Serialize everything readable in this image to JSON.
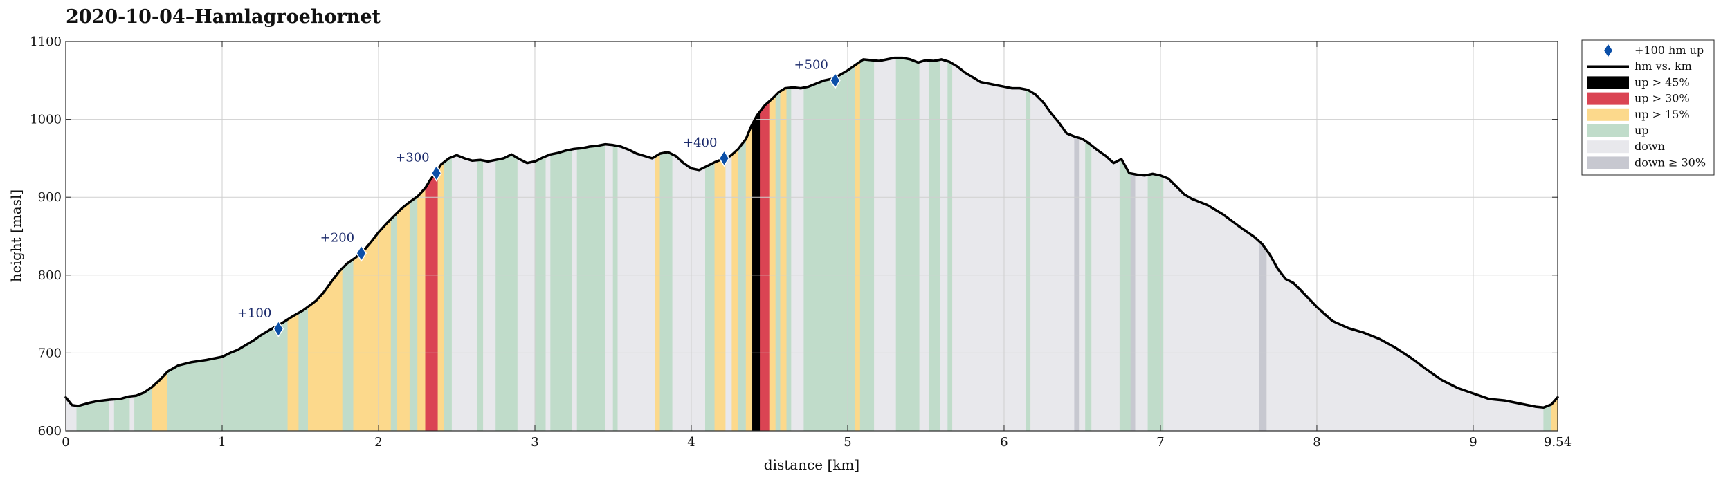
{
  "chart_data": {
    "type": "area",
    "title": "2020-10-04–Hamlagroehornet",
    "xlabel": "distance [km]",
    "ylabel": "height [masl]",
    "xlim": [
      0,
      9.54
    ],
    "ylim": [
      600,
      1100
    ],
    "xticks": [
      0,
      1,
      2,
      3,
      4,
      5,
      6,
      7,
      8,
      9,
      9.54
    ],
    "xtick_labels": [
      "0",
      "1",
      "2",
      "3",
      "4",
      "5",
      "6",
      "7",
      "8",
      "9",
      "9.54"
    ],
    "yticks": [
      600,
      700,
      800,
      900,
      1000,
      1100
    ],
    "grid": true,
    "legend_position": "outside-right",
    "legend": [
      {
        "key": "milestone",
        "label": "+100 hm up",
        "color": "#0b4fa8"
      },
      {
        "key": "profile",
        "label": "hm vs. km",
        "color": "#000000"
      },
      {
        "key": "up45",
        "label": "up > 45%",
        "color": "#000000"
      },
      {
        "key": "up30",
        "label": "up > 30%",
        "color": "#da4453"
      },
      {
        "key": "up15",
        "label": "up > 15%",
        "color": "#fcd98c"
      },
      {
        "key": "up",
        "label": "up",
        "color": "#c0dcca"
      },
      {
        "key": "down",
        "label": "down",
        "color": "#e8e8ec"
      },
      {
        "key": "down30",
        "label": "down ≥ 30%",
        "color": "#c7c8d0"
      }
    ],
    "profile": {
      "x": [
        0,
        0.04,
        0.08,
        0.15,
        0.2,
        0.28,
        0.35,
        0.4,
        0.45,
        0.5,
        0.55,
        0.6,
        0.65,
        0.72,
        0.8,
        0.9,
        1.0,
        1.05,
        1.1,
        1.15,
        1.2,
        1.25,
        1.3,
        1.38,
        1.45,
        1.52,
        1.6,
        1.65,
        1.7,
        1.75,
        1.8,
        1.85,
        1.9,
        1.95,
        2.0,
        2.05,
        2.1,
        2.15,
        2.2,
        2.25,
        2.3,
        2.33,
        2.37,
        2.4,
        2.45,
        2.5,
        2.55,
        2.6,
        2.65,
        2.7,
        2.75,
        2.8,
        2.85,
        2.9,
        2.95,
        3.0,
        3.05,
        3.1,
        3.15,
        3.2,
        3.25,
        3.3,
        3.35,
        3.4,
        3.45,
        3.5,
        3.55,
        3.6,
        3.65,
        3.7,
        3.75,
        3.8,
        3.85,
        3.9,
        3.95,
        4.0,
        4.05,
        4.1,
        4.15,
        4.2,
        4.25,
        4.3,
        4.35,
        4.38,
        4.42,
        4.47,
        4.52,
        4.56,
        4.6,
        4.65,
        4.7,
        4.75,
        4.8,
        4.85,
        4.9,
        4.95,
        5.0,
        5.05,
        5.1,
        5.15,
        5.2,
        5.25,
        5.3,
        5.35,
        5.4,
        5.45,
        5.5,
        5.55,
        5.6,
        5.65,
        5.7,
        5.75,
        5.8,
        5.85,
        5.9,
        5.95,
        6.0,
        6.05,
        6.1,
        6.15,
        6.2,
        6.25,
        6.3,
        6.35,
        6.4,
        6.45,
        6.5,
        6.55,
        6.6,
        6.65,
        6.7,
        6.75,
        6.8,
        6.85,
        6.9,
        6.95,
        7.0,
        7.05,
        7.1,
        7.15,
        7.2,
        7.3,
        7.4,
        7.5,
        7.6,
        7.65,
        7.7,
        7.75,
        7.8,
        7.85,
        7.9,
        8.0,
        8.1,
        8.2,
        8.3,
        8.4,
        8.5,
        8.6,
        8.7,
        8.8,
        8.9,
        9.0,
        9.1,
        9.15,
        9.2,
        9.3,
        9.4,
        9.45,
        9.5,
        9.54
      ],
      "y": [
        643,
        633,
        632,
        636,
        638,
        640,
        641,
        644,
        645,
        649,
        656,
        665,
        676,
        684,
        688,
        691,
        695,
        700,
        704,
        710,
        716,
        723,
        729,
        738,
        747,
        755,
        767,
        778,
        792,
        805,
        815,
        822,
        830,
        842,
        855,
        866,
        876,
        886,
        894,
        901,
        912,
        922,
        933,
        942,
        950,
        954,
        950,
        947,
        948,
        946,
        948,
        950,
        955,
        949,
        944,
        946,
        951,
        955,
        957,
        960,
        962,
        963,
        965,
        966,
        968,
        967,
        965,
        961,
        956,
        953,
        950,
        956,
        958,
        953,
        944,
        937,
        935,
        940,
        945,
        949,
        953,
        962,
        975,
        990,
        1005,
        1018,
        1027,
        1035,
        1040,
        1041,
        1040,
        1042,
        1046,
        1050,
        1052,
        1057,
        1063,
        1070,
        1077,
        1076,
        1075,
        1077,
        1079,
        1079,
        1077,
        1073,
        1076,
        1075,
        1077,
        1074,
        1068,
        1060,
        1054,
        1048,
        1046,
        1044,
        1042,
        1040,
        1040,
        1038,
        1032,
        1022,
        1008,
        996,
        982,
        978,
        975,
        968,
        960,
        953,
        944,
        949,
        931,
        929,
        928,
        930,
        928,
        924,
        914,
        904,
        898,
        890,
        878,
        863,
        849,
        840,
        826,
        808,
        795,
        790,
        780,
        759,
        741,
        732,
        726,
        718,
        707,
        694,
        679,
        665,
        655,
        648,
        641,
        640,
        639,
        635,
        631,
        630,
        634,
        643
      ]
    },
    "milestones": [
      {
        "label": "+100",
        "x": 1.36,
        "y": 731
      },
      {
        "label": "+200",
        "x": 1.89,
        "y": 828
      },
      {
        "label": "+300",
        "x": 2.37,
        "y": 931
      },
      {
        "label": "+400",
        "x": 4.21,
        "y": 950
      },
      {
        "label": "+500",
        "x": 4.92,
        "y": 1050
      }
    ],
    "segments": [
      {
        "x0": 0,
        "x1": 0.07,
        "cat": "down"
      },
      {
        "x0": 0.07,
        "x1": 0.28,
        "cat": "up"
      },
      {
        "x0": 0.28,
        "x1": 0.31,
        "cat": "down"
      },
      {
        "x0": 0.31,
        "x1": 0.41,
        "cat": "up"
      },
      {
        "x0": 0.41,
        "x1": 0.44,
        "cat": "down"
      },
      {
        "x0": 0.44,
        "x1": 0.55,
        "cat": "up"
      },
      {
        "x0": 0.55,
        "x1": 0.65,
        "cat": "up15"
      },
      {
        "x0": 0.65,
        "x1": 1.42,
        "cat": "up"
      },
      {
        "x0": 1.42,
        "x1": 1.49,
        "cat": "up15"
      },
      {
        "x0": 1.49,
        "x1": 1.55,
        "cat": "up"
      },
      {
        "x0": 1.55,
        "x1": 1.77,
        "cat": "up15"
      },
      {
        "x0": 1.77,
        "x1": 1.84,
        "cat": "up"
      },
      {
        "x0": 1.84,
        "x1": 2.08,
        "cat": "up15"
      },
      {
        "x0": 2.08,
        "x1": 2.12,
        "cat": "up"
      },
      {
        "x0": 2.12,
        "x1": 2.2,
        "cat": "up15"
      },
      {
        "x0": 2.2,
        "x1": 2.25,
        "cat": "up"
      },
      {
        "x0": 2.25,
        "x1": 2.3,
        "cat": "up15"
      },
      {
        "x0": 2.3,
        "x1": 2.38,
        "cat": "up30"
      },
      {
        "x0": 2.38,
        "x1": 2.42,
        "cat": "up15"
      },
      {
        "x0": 2.42,
        "x1": 2.47,
        "cat": "up"
      },
      {
        "x0": 2.47,
        "x1": 2.63,
        "cat": "down"
      },
      {
        "x0": 2.63,
        "x1": 2.67,
        "cat": "up"
      },
      {
        "x0": 2.67,
        "x1": 2.75,
        "cat": "down"
      },
      {
        "x0": 2.75,
        "x1": 2.89,
        "cat": "up"
      },
      {
        "x0": 2.89,
        "x1": 3.0,
        "cat": "down"
      },
      {
        "x0": 3.0,
        "x1": 3.07,
        "cat": "up"
      },
      {
        "x0": 3.07,
        "x1": 3.1,
        "cat": "down"
      },
      {
        "x0": 3.1,
        "x1": 3.24,
        "cat": "up"
      },
      {
        "x0": 3.24,
        "x1": 3.27,
        "cat": "down"
      },
      {
        "x0": 3.27,
        "x1": 3.45,
        "cat": "up"
      },
      {
        "x0": 3.45,
        "x1": 3.5,
        "cat": "down"
      },
      {
        "x0": 3.5,
        "x1": 3.53,
        "cat": "up"
      },
      {
        "x0": 3.53,
        "x1": 3.77,
        "cat": "down"
      },
      {
        "x0": 3.77,
        "x1": 3.8,
        "cat": "up15"
      },
      {
        "x0": 3.8,
        "x1": 3.88,
        "cat": "up"
      },
      {
        "x0": 3.88,
        "x1": 4.09,
        "cat": "down"
      },
      {
        "x0": 4.09,
        "x1": 4.15,
        "cat": "up"
      },
      {
        "x0": 4.15,
        "x1": 4.22,
        "cat": "up15"
      },
      {
        "x0": 4.22,
        "x1": 4.26,
        "cat": "down"
      },
      {
        "x0": 4.26,
        "x1": 4.3,
        "cat": "up15"
      },
      {
        "x0": 4.3,
        "x1": 4.35,
        "cat": "up"
      },
      {
        "x0": 4.35,
        "x1": 4.39,
        "cat": "up15"
      },
      {
        "x0": 4.39,
        "x1": 4.44,
        "cat": "up45"
      },
      {
        "x0": 4.44,
        "x1": 4.5,
        "cat": "up30"
      },
      {
        "x0": 4.5,
        "x1": 4.54,
        "cat": "up15"
      },
      {
        "x0": 4.54,
        "x1": 4.57,
        "cat": "up"
      },
      {
        "x0": 4.57,
        "x1": 4.61,
        "cat": "up15"
      },
      {
        "x0": 4.61,
        "x1": 4.64,
        "cat": "up"
      },
      {
        "x0": 4.64,
        "x1": 4.72,
        "cat": "down"
      },
      {
        "x0": 4.72,
        "x1": 5.05,
        "cat": "up"
      },
      {
        "x0": 5.05,
        "x1": 5.08,
        "cat": "up15"
      },
      {
        "x0": 5.08,
        "x1": 5.17,
        "cat": "up"
      },
      {
        "x0": 5.17,
        "x1": 5.31,
        "cat": "down"
      },
      {
        "x0": 5.31,
        "x1": 5.46,
        "cat": "up"
      },
      {
        "x0": 5.46,
        "x1": 5.52,
        "cat": "down"
      },
      {
        "x0": 5.52,
        "x1": 5.59,
        "cat": "up"
      },
      {
        "x0": 5.59,
        "x1": 5.64,
        "cat": "down"
      },
      {
        "x0": 5.64,
        "x1": 5.67,
        "cat": "up"
      },
      {
        "x0": 5.67,
        "x1": 6.14,
        "cat": "down"
      },
      {
        "x0": 6.14,
        "x1": 6.17,
        "cat": "up"
      },
      {
        "x0": 6.17,
        "x1": 6.45,
        "cat": "down"
      },
      {
        "x0": 6.45,
        "x1": 6.48,
        "cat": "down30"
      },
      {
        "x0": 6.48,
        "x1": 6.52,
        "cat": "down"
      },
      {
        "x0": 6.52,
        "x1": 6.56,
        "cat": "up"
      },
      {
        "x0": 6.56,
        "x1": 6.74,
        "cat": "down"
      },
      {
        "x0": 6.74,
        "x1": 6.81,
        "cat": "up"
      },
      {
        "x0": 6.81,
        "x1": 6.84,
        "cat": "down30"
      },
      {
        "x0": 6.84,
        "x1": 6.92,
        "cat": "down"
      },
      {
        "x0": 6.92,
        "x1": 7.02,
        "cat": "up"
      },
      {
        "x0": 7.02,
        "x1": 7.63,
        "cat": "down"
      },
      {
        "x0": 7.63,
        "x1": 7.68,
        "cat": "down30"
      },
      {
        "x0": 7.68,
        "x1": 9.45,
        "cat": "down"
      },
      {
        "x0": 9.45,
        "x1": 9.5,
        "cat": "up"
      },
      {
        "x0": 9.5,
        "x1": 9.54,
        "cat": "up15"
      }
    ]
  }
}
